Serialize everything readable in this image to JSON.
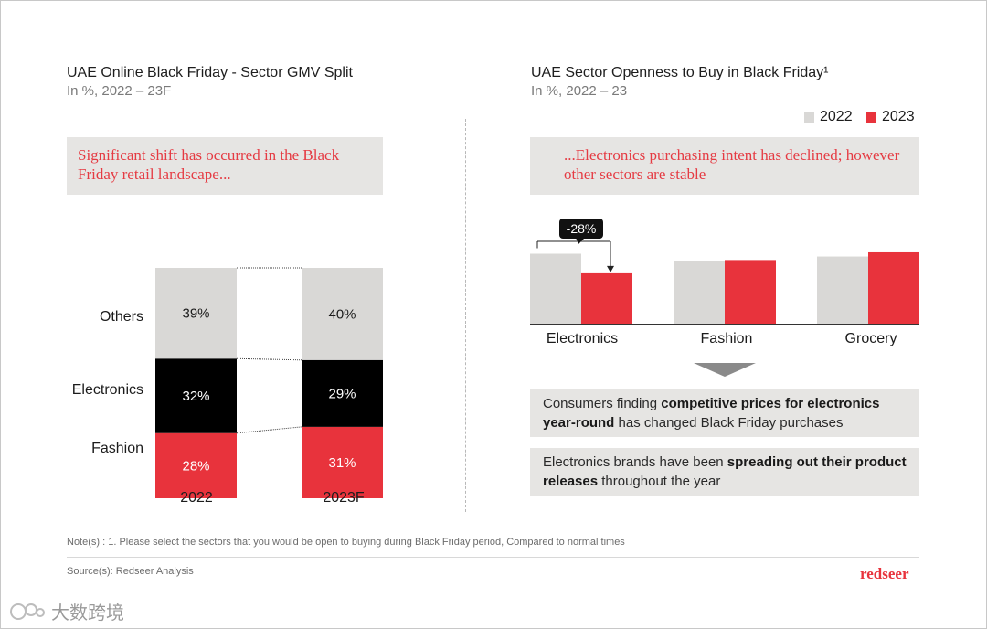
{
  "left_panel": {
    "title": "UAE Online Black Friday - Sector GMV Split",
    "subtitle": "In %, 2022 – 23F",
    "callout": "Significant shift has occurred in the Black Friday retail landscape..."
  },
  "right_panel": {
    "title": "UAE Sector Openness to Buy in Black Friday¹",
    "subtitle": "In %, 2022 – 23",
    "callout": "...Electronics purchasing intent has declined; however other sectors are stable",
    "change_label": "-28%",
    "insight1": {
      "pre": "Consumers finding ",
      "bold": "competitive prices for electronics year-round",
      "post": " has changed Black Friday purchases"
    },
    "insight2": {
      "pre": "Electronics brands have been ",
      "bold": "spreading out their product releases",
      "post": " throughout the year"
    }
  },
  "footer": {
    "note": "Note(s) : 1. Please select the sectors that you would be open to buying during Black Friday period, Compared to normal times",
    "source": "Source(s): Redseer Analysis",
    "brand": "redseer",
    "watermark": "大数跨境"
  },
  "colors": {
    "gray": "#d9d8d6",
    "red": "#e8333c",
    "black": "#000000",
    "accent_text": "#e53b43"
  },
  "chart_data": [
    {
      "type": "bar",
      "stacked": true,
      "categories": [
        "2022",
        "2023F"
      ],
      "series": [
        {
          "name": "Fashion",
          "values": [
            28,
            31
          ],
          "labels": [
            "28%",
            "31%"
          ],
          "color": "#e8333c"
        },
        {
          "name": "Electronics",
          "values": [
            32,
            29
          ],
          "labels": [
            "32%",
            "29%"
          ],
          "color": "#000000"
        },
        {
          "name": "Others",
          "values": [
            39,
            40
          ],
          "labels": [
            "39%",
            "40%"
          ],
          "color": "#d9d8d6"
        }
      ]
    },
    {
      "type": "bar",
      "categories": [
        "Electronics",
        "Fashion",
        "Grocery"
      ],
      "legend": [
        "2022",
        "2023"
      ],
      "legend_position": "top-right",
      "series": [
        {
          "name": "2022",
          "values": [
            100,
            89,
            96
          ],
          "color": "#d9d8d6"
        },
        {
          "name": "2023",
          "values": [
            72,
            91,
            102
          ],
          "color": "#e8333c"
        }
      ],
      "value_axis_shown": false
    }
  ]
}
